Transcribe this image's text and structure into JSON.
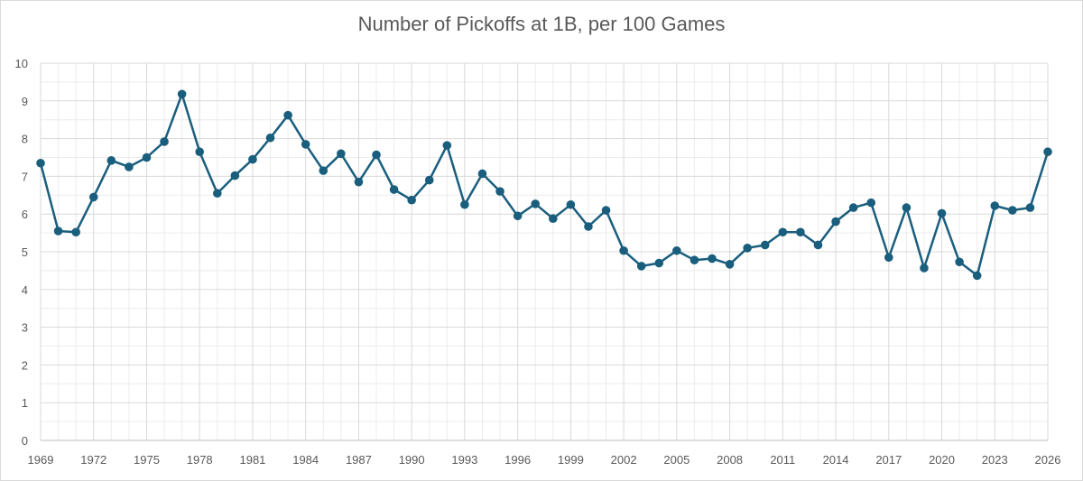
{
  "chart_data": {
    "type": "line",
    "title": "Number of Pickoffs at 1B, per 100 Games",
    "xlabel": "",
    "ylabel": "",
    "xlim": [
      1969,
      2026
    ],
    "ylim": [
      0,
      10
    ],
    "x_ticks": [
      "1969",
      "1972",
      "1975",
      "1978",
      "1981",
      "1984",
      "1987",
      "1990",
      "1993",
      "1996",
      "1999",
      "2002",
      "2005",
      "2008",
      "2011",
      "2014",
      "2017",
      "2020",
      "2023",
      "2026"
    ],
    "y_ticks": [
      "0",
      "1",
      "2",
      "3",
      "4",
      "5",
      "6",
      "7",
      "8",
      "9",
      "10"
    ],
    "grid": true,
    "legend": "none",
    "color": "#1a5e7e",
    "grid_major_color": "#d9d9d9",
    "grid_minor_color": "#ececec",
    "series": [
      {
        "x": [
          1969,
          1970,
          1971,
          1972,
          1973,
          1974,
          1975,
          1976,
          1977,
          1978,
          1979,
          1980,
          1981,
          1982,
          1983,
          1984,
          1985,
          1986,
          1987,
          1988,
          1989,
          1990,
          1991,
          1992,
          1993,
          1994,
          1995,
          1996,
          1997,
          1998,
          1999,
          2000,
          2001,
          2002,
          2003,
          2004,
          2005,
          2006,
          2007,
          2008,
          2009,
          2010,
          2011,
          2012,
          2013,
          2014,
          2015,
          2016,
          2017,
          2018,
          2019,
          2020,
          2021,
          2022,
          2023,
          2024,
          2025,
          2026
        ],
        "values": [
          7.35,
          5.55,
          5.52,
          6.45,
          7.42,
          7.25,
          7.5,
          7.92,
          9.18,
          7.65,
          6.55,
          7.02,
          7.45,
          8.02,
          8.62,
          7.85,
          7.15,
          7.6,
          6.85,
          7.57,
          6.65,
          6.37,
          6.9,
          7.82,
          6.25,
          7.07,
          6.6,
          5.95,
          6.27,
          5.88,
          6.25,
          5.67,
          6.1,
          5.03,
          4.62,
          4.7,
          5.03,
          4.78,
          4.82,
          4.67,
          5.1,
          5.18,
          5.52,
          5.52,
          5.18,
          5.8,
          6.17,
          6.3,
          4.85,
          6.17,
          4.57,
          6.02,
          4.73,
          4.37,
          6.22,
          6.1,
          6.17,
          7.65
        ]
      }
    ]
  }
}
